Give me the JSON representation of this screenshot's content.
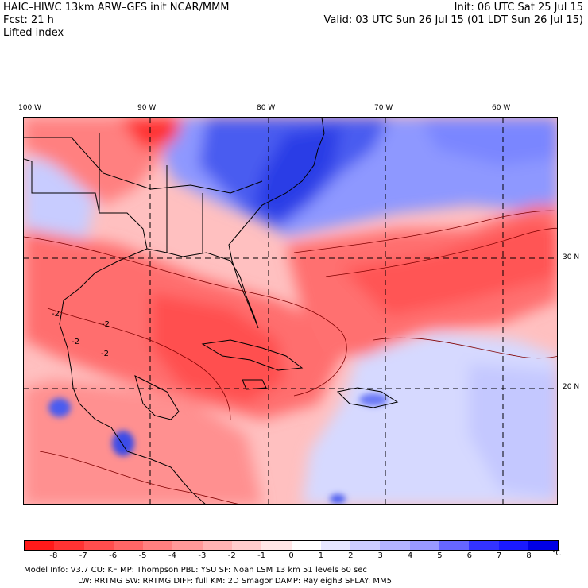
{
  "header": {
    "line1_left": "HAIC–HIWC 13km ARW–GFS init    NCAR/MMM",
    "line2_left": "Fcst:    21 h",
    "line3_left": "Lifted index",
    "line1_right": "Init: 06 UTC Sat 25 Jul 15",
    "line2_right": "Valid: 03 UTC Sun 26 Jul 15 (01 LDT Sun 26 Jul 15)"
  },
  "map": {
    "longitude_labels": [
      "100 W",
      "90 W",
      "80 W",
      "70 W",
      "60 W"
    ],
    "latitude_labels": [
      "30 N",
      "20 N"
    ],
    "contour_labels": [
      "-2",
      "-2",
      "-2",
      "-2"
    ]
  },
  "legend": {
    "labels": [
      "-8",
      "-7",
      "-6",
      "-5",
      "-4",
      "-3",
      "-2",
      "-1",
      "0",
      "1",
      "2",
      "3",
      "4",
      "5",
      "6",
      "7",
      "8"
    ],
    "unit": "°C",
    "colors": [
      "#ff1a1a",
      "#ff3333",
      "#ff4d4d",
      "#ff6666",
      "#ff8080",
      "#ff9999",
      "#ffb3b3",
      "#ffcccc",
      "#ffe6e6",
      "#ffffff",
      "#e6e6ff",
      "#ccccff",
      "#b3b3ff",
      "#9999ff",
      "#6666ff",
      "#3333ff",
      "#1a1aff",
      "#0000e6"
    ]
  },
  "footer": {
    "line1": "Model Info: V3.7      CU: KF      MP: Thompson      PBL: YSU      SF: Noah LSM      13 km      51 levels      60 sec",
    "line2": "LW: RRTMG      SW: RRTMG   DIFF: full     KM: 2D Smagor  DAMP: Rayleigh3   SFLAY: MM5"
  }
}
